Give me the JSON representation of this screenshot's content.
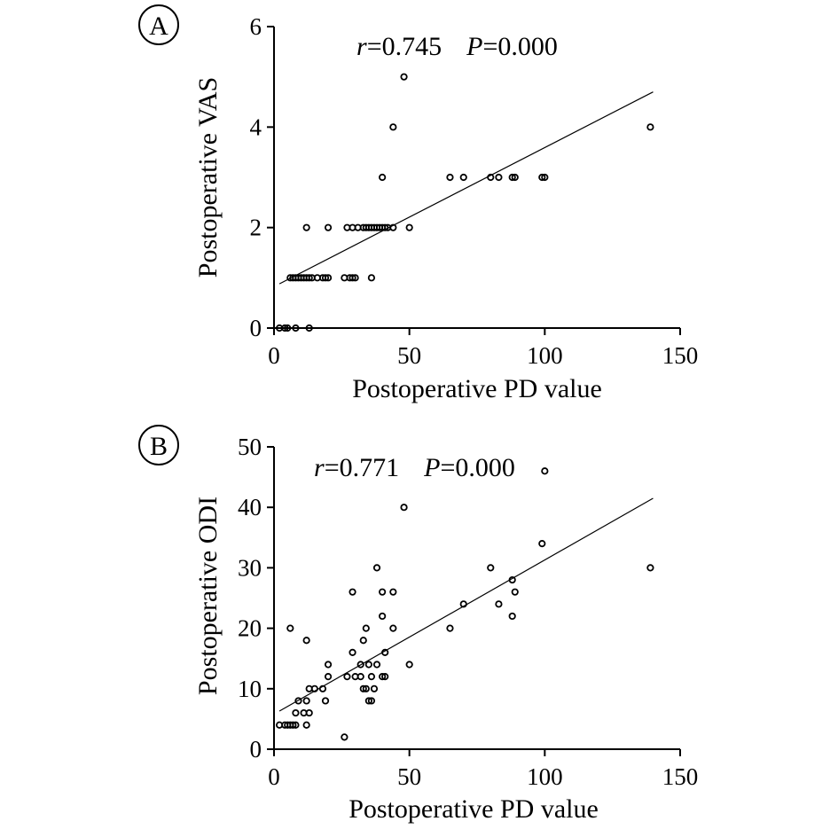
{
  "chart_data": [
    {
      "type": "scatter",
      "panel_label": "A",
      "stats": {
        "r_symbol": "r",
        "r_value": "=0.745",
        "p_symbol": "P",
        "p_value": "=0.000"
      },
      "xlabel": "Postoperative PD value",
      "ylabel": "Postoperative VAS",
      "xlim": [
        0,
        150
      ],
      "ylim": [
        0,
        6
      ],
      "x_ticks": [
        "0",
        "50",
        "100",
        "150"
      ],
      "y_ticks": [
        "0",
        "2",
        "4",
        "6"
      ],
      "grid": false,
      "points": [
        [
          2,
          0
        ],
        [
          4,
          0
        ],
        [
          5,
          0
        ],
        [
          8,
          0
        ],
        [
          13,
          0
        ],
        [
          6,
          1
        ],
        [
          7,
          1
        ],
        [
          8,
          1
        ],
        [
          9,
          1
        ],
        [
          10,
          1
        ],
        [
          11,
          1
        ],
        [
          12,
          1
        ],
        [
          13,
          1
        ],
        [
          14,
          1
        ],
        [
          16,
          1
        ],
        [
          18,
          1
        ],
        [
          19,
          1
        ],
        [
          20,
          1
        ],
        [
          26,
          1
        ],
        [
          28,
          1
        ],
        [
          29,
          1
        ],
        [
          30,
          1
        ],
        [
          36,
          1
        ],
        [
          12,
          2
        ],
        [
          20,
          2
        ],
        [
          27,
          2
        ],
        [
          29,
          2
        ],
        [
          31,
          2
        ],
        [
          33,
          2
        ],
        [
          34,
          2
        ],
        [
          35,
          2
        ],
        [
          36,
          2
        ],
        [
          37,
          2
        ],
        [
          38,
          2
        ],
        [
          39,
          2
        ],
        [
          40,
          2
        ],
        [
          41,
          2
        ],
        [
          42,
          2
        ],
        [
          44,
          2
        ],
        [
          50,
          2
        ],
        [
          40,
          3
        ],
        [
          65,
          3
        ],
        [
          70,
          3
        ],
        [
          80,
          3
        ],
        [
          83,
          3
        ],
        [
          88,
          3
        ],
        [
          89,
          3
        ],
        [
          99,
          3
        ],
        [
          100,
          3
        ],
        [
          44,
          4
        ],
        [
          139,
          4
        ],
        [
          48,
          5
        ]
      ],
      "fit_line": {
        "x": [
          2,
          140
        ],
        "y": [
          0.88,
          4.7
        ]
      }
    },
    {
      "type": "scatter",
      "panel_label": "B",
      "stats": {
        "r_symbol": "r",
        "r_value": "=0.771",
        "p_symbol": "P",
        "p_value": "=0.000"
      },
      "xlabel": "Postoperative PD value",
      "ylabel": "Postoperative ODI",
      "xlim": [
        0,
        150
      ],
      "ylim": [
        0,
        50
      ],
      "x_ticks": [
        "0",
        "50",
        "100",
        "150"
      ],
      "y_ticks": [
        "0",
        "10",
        "20",
        "30",
        "40",
        "50"
      ],
      "grid": false,
      "points": [
        [
          2,
          4
        ],
        [
          4,
          4
        ],
        [
          5,
          4
        ],
        [
          6,
          4
        ],
        [
          7,
          4
        ],
        [
          8,
          4
        ],
        [
          12,
          4
        ],
        [
          8,
          6
        ],
        [
          11,
          6
        ],
        [
          13,
          6
        ],
        [
          9,
          8
        ],
        [
          12,
          8
        ],
        [
          19,
          8
        ],
        [
          35,
          8
        ],
        [
          36,
          8
        ],
        [
          13,
          10
        ],
        [
          15,
          10
        ],
        [
          18,
          10
        ],
        [
          33,
          10
        ],
        [
          34,
          10
        ],
        [
          37,
          10
        ],
        [
          20,
          12
        ],
        [
          27,
          12
        ],
        [
          30,
          12
        ],
        [
          32,
          12
        ],
        [
          36,
          12
        ],
        [
          40,
          12
        ],
        [
          41,
          12
        ],
        [
          20,
          14
        ],
        [
          32,
          14
        ],
        [
          35,
          14
        ],
        [
          38,
          14
        ],
        [
          50,
          14
        ],
        [
          29,
          16
        ],
        [
          41,
          16
        ],
        [
          33,
          18
        ],
        [
          12,
          18
        ],
        [
          6,
          20
        ],
        [
          34,
          20
        ],
        [
          44,
          20
        ],
        [
          65,
          20
        ],
        [
          40,
          22
        ],
        [
          88,
          22
        ],
        [
          83,
          24
        ],
        [
          70,
          24
        ],
        [
          29,
          26
        ],
        [
          40,
          26
        ],
        [
          44,
          26
        ],
        [
          89,
          26
        ],
        [
          88,
          28
        ],
        [
          38,
          30
        ],
        [
          80,
          30
        ],
        [
          139,
          30
        ],
        [
          99,
          34
        ],
        [
          48,
          40
        ],
        [
          100,
          46
        ],
        [
          26,
          2
        ]
      ],
      "fit_line": {
        "x": [
          2,
          140
        ],
        "y": [
          6.3,
          41.5
        ]
      }
    }
  ]
}
